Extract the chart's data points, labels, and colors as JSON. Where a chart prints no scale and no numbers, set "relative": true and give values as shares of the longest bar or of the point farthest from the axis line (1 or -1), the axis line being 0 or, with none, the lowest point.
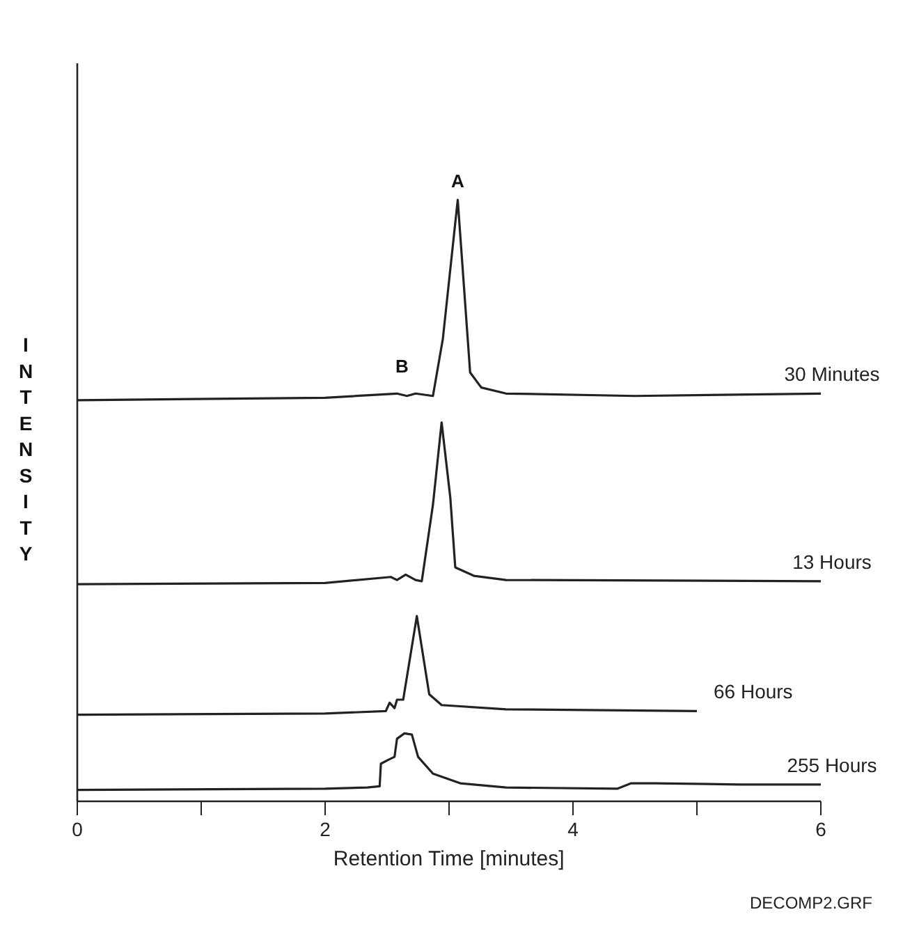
{
  "chart_data": {
    "type": "line",
    "relative": true,
    "xlabel": "Retention Time [minutes]",
    "ylabel": "INTENSITY",
    "xlim": [
      0,
      6
    ],
    "xticks": [
      0,
      {
        "value": 1,
        "label": null
      },
      2,
      {
        "value": 3,
        "label": null
      },
      4,
      {
        "value": 5,
        "label": null
      },
      6
    ],
    "grid": false,
    "marker": "none",
    "line_style": "solid",
    "series": [
      {
        "name": "30 Minutes",
        "color": "#222222",
        "x": [
          0,
          2.0,
          2.58,
          2.66,
          2.73,
          2.87,
          2.95,
          3.07,
          3.17,
          3.26,
          3.46,
          4.5,
          6
        ],
        "values": [
          0.667,
          0.671,
          0.678,
          0.674,
          0.678,
          0.674,
          0.769,
          1.0,
          0.713,
          0.688,
          0.678,
          0.674,
          0.678
        ]
      },
      {
        "name": "13 Hours",
        "color": "#222222",
        "x": [
          0,
          2.0,
          2.53,
          2.58,
          2.65,
          2.73,
          2.78,
          2.87,
          2.94,
          3.01,
          3.05,
          3.2,
          3.46,
          6
        ],
        "values": [
          0.361,
          0.363,
          0.373,
          0.368,
          0.377,
          0.368,
          0.366,
          0.493,
          0.63,
          0.505,
          0.389,
          0.375,
          0.368,
          0.366
        ]
      },
      {
        "name": "66 Hours",
        "color": "#222222",
        "x": [
          0,
          2.0,
          2.49,
          2.52,
          2.56,
          2.58,
          2.63,
          2.74,
          2.84,
          2.94,
          3.46,
          5.0
        ],
        "values": [
          0.144,
          0.146,
          0.15,
          0.164,
          0.155,
          0.169,
          0.169,
          0.308,
          0.178,
          0.16,
          0.153,
          0.15
        ]
      },
      {
        "name": "255 Hours",
        "color": "#222222",
        "x": [
          0,
          2.0,
          2.34,
          2.44,
          2.45,
          2.51,
          2.56,
          2.58,
          2.64,
          2.7,
          2.75,
          2.87,
          3.09,
          3.46,
          4.36,
          4.47,
          4.66,
          5.34,
          6
        ],
        "values": [
          0.019,
          0.021,
          0.023,
          0.025,
          0.0625,
          0.069,
          0.074,
          0.104,
          0.113,
          0.111,
          0.074,
          0.046,
          0.03,
          0.023,
          0.021,
          0.03,
          0.03,
          0.028,
          0.028
        ]
      }
    ],
    "annotations": [
      {
        "text": "A",
        "x": 3.07,
        "y": 1.0
      },
      {
        "text": "B",
        "x": 2.62,
        "y": 0.678
      },
      "DECOMP2.GRF"
    ]
  }
}
